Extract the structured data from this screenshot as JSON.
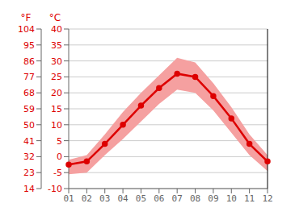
{
  "chart_data": {
    "type": "line",
    "categories": [
      "01",
      "02",
      "03",
      "04",
      "05",
      "06",
      "07",
      "08",
      "09",
      "10",
      "11",
      "12"
    ],
    "series": [
      {
        "type": "line",
        "color": "#dd0000",
        "marker": "o",
        "values": [
          -2.5,
          -1.5,
          4.0,
          10.0,
          16.0,
          21.5,
          26.0,
          25.0,
          19.0,
          12.0,
          4.0,
          -1.5
        ]
      },
      {
        "type": "band",
        "color": "#f5a0a0",
        "low": [
          -5.5,
          -5.0,
          0.5,
          5.5,
          11.0,
          16.5,
          21.0,
          20.0,
          14.5,
          7.5,
          0.5,
          -4.5
        ],
        "high": [
          -1.0,
          0.5,
          7.0,
          14.0,
          20.0,
          25.5,
          31.0,
          29.5,
          23.0,
          15.5,
          7.0,
          0.5
        ]
      }
    ],
    "ylim": [
      -10,
      40
    ],
    "yticks": [
      -10,
      -5,
      0,
      5,
      10,
      15,
      20,
      25,
      30,
      35,
      40
    ],
    "ylabel": "°C",
    "y2lim": [
      14,
      104
    ],
    "y2ticks": [
      14,
      23,
      32,
      41,
      50,
      59,
      68,
      77,
      86,
      95,
      104
    ],
    "y2label": "°F",
    "grid": true
  }
}
